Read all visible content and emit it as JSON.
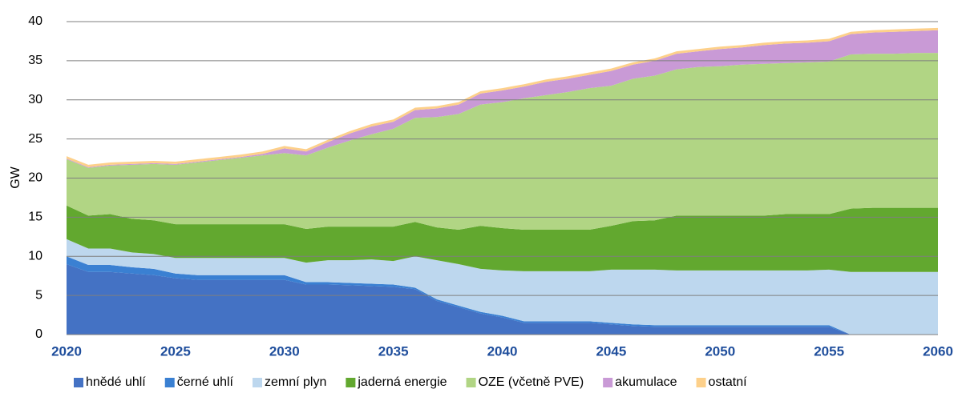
{
  "chart_data": {
    "type": "stacked-area",
    "ylabel": "GW",
    "x": [
      2020,
      2021,
      2022,
      2023,
      2024,
      2025,
      2026,
      2027,
      2028,
      2029,
      2030,
      2031,
      2032,
      2033,
      2034,
      2035,
      2036,
      2037,
      2038,
      2039,
      2040,
      2041,
      2042,
      2043,
      2044,
      2045,
      2046,
      2047,
      2048,
      2049,
      2050,
      2051,
      2052,
      2053,
      2054,
      2055,
      2056,
      2057,
      2058,
      2059,
      2060
    ],
    "xlim": [
      2020,
      2060
    ],
    "xticks": [
      2020,
      2025,
      2030,
      2035,
      2040,
      2045,
      2050,
      2055,
      2060
    ],
    "ylim": [
      0,
      40
    ],
    "yticks": [
      0,
      5,
      10,
      15,
      20,
      25,
      30,
      35,
      40
    ],
    "grid": true,
    "legend": "bottom",
    "series": [
      {
        "name": "hnědé uhlí",
        "color": "#4472c4",
        "values": [
          9,
          8,
          8,
          7.8,
          7.6,
          7.2,
          7,
          7,
          7,
          7,
          7,
          6.4,
          6.4,
          6.3,
          6.2,
          6.1,
          5.8,
          4.3,
          3.5,
          2.7,
          2.2,
          1.5,
          1.5,
          1.5,
          1.5,
          1.3,
          1.1,
          1,
          1,
          1,
          1,
          1,
          1,
          1,
          1,
          1,
          0,
          0,
          0,
          0,
          0
        ]
      },
      {
        "name": "černé uhlí",
        "color": "#3a80d2",
        "values": [
          1,
          0.9,
          0.9,
          0.8,
          0.8,
          0.6,
          0.6,
          0.6,
          0.6,
          0.6,
          0.6,
          0.3,
          0.3,
          0.3,
          0.3,
          0.3,
          0.2,
          0.2,
          0.2,
          0.2,
          0.2,
          0.2,
          0.2,
          0.2,
          0.2,
          0.2,
          0.2,
          0.2,
          0.2,
          0.2,
          0.2,
          0.2,
          0.2,
          0.2,
          0.2,
          0.2,
          0,
          0,
          0,
          0,
          0
        ]
      },
      {
        "name": "zemní plyn",
        "color": "#bdd7ee",
        "values": [
          2.2,
          2.1,
          2.1,
          1.9,
          1.9,
          2.0,
          2.2,
          2.2,
          2.2,
          2.2,
          2.2,
          2.5,
          2.8,
          2.9,
          3.1,
          3.0,
          4.0,
          5.0,
          5.3,
          5.5,
          5.8,
          6.4,
          6.4,
          6.4,
          6.4,
          6.8,
          7.0,
          7.1,
          7.0,
          7.0,
          7.0,
          7.0,
          7.0,
          7.0,
          7.0,
          7.1,
          8,
          8,
          8,
          8,
          8
        ]
      },
      {
        "name": "jaderná energie",
        "color": "#62a82f",
        "values": [
          4.3,
          4.2,
          4.4,
          4.3,
          4.3,
          4.3,
          4.3,
          4.3,
          4.3,
          4.3,
          4.3,
          4.3,
          4.3,
          4.3,
          4.2,
          4.4,
          4.4,
          4.2,
          4.4,
          5.5,
          5.4,
          5.3,
          5.3,
          5.3,
          5.3,
          5.6,
          6.2,
          6.3,
          7.0,
          7.0,
          7.0,
          7.0,
          7.0,
          7.2,
          7.2,
          7.1,
          8.1,
          8.2,
          8.2,
          8.2,
          8.2
        ]
      },
      {
        "name": "OZE (včetně PVE)",
        "color": "#b1d584",
        "values": [
          5.9,
          6.1,
          6.2,
          6.9,
          7.2,
          7.6,
          7.9,
          8.2,
          8.5,
          8.8,
          9.1,
          9.4,
          10.1,
          11.0,
          11.8,
          12.5,
          13.3,
          14.1,
          14.8,
          15.5,
          16.1,
          16.8,
          17.2,
          17.6,
          18.1,
          17.9,
          18.2,
          18.5,
          18.7,
          19.0,
          19.1,
          19.3,
          19.4,
          19.3,
          19.4,
          19.5,
          19.7,
          19.7,
          19.7,
          19.8,
          19.8
        ]
      },
      {
        "name": "akumulace",
        "color": "#c99ad6",
        "values": [
          0.1,
          0.1,
          0.1,
          0.1,
          0.1,
          0.1,
          0.1,
          0.1,
          0.1,
          0.2,
          0.6,
          0.5,
          0.7,
          0.9,
          1.0,
          0.9,
          1.0,
          1.1,
          1.2,
          1.4,
          1.5,
          1.5,
          1.7,
          1.7,
          1.7,
          1.9,
          1.8,
          1.9,
          2.0,
          2.0,
          2.2,
          2.2,
          2.4,
          2.5,
          2.5,
          2.6,
          2.6,
          2.7,
          2.8,
          2.8,
          2.9
        ]
      },
      {
        "name": "ostatní",
        "color": "#fdd08a",
        "values": [
          0.3,
          0.3,
          0.3,
          0.3,
          0.3,
          0.3,
          0.3,
          0.3,
          0.3,
          0.3,
          0.3,
          0.3,
          0.3,
          0.3,
          0.3,
          0.3,
          0.3,
          0.3,
          0.3,
          0.3,
          0.3,
          0.3,
          0.3,
          0.3,
          0.3,
          0.3,
          0.3,
          0.3,
          0.3,
          0.3,
          0.3,
          0.3,
          0.3,
          0.3,
          0.3,
          0.3,
          0.3,
          0.3,
          0.3,
          0.3,
          0.3
        ]
      }
    ]
  }
}
